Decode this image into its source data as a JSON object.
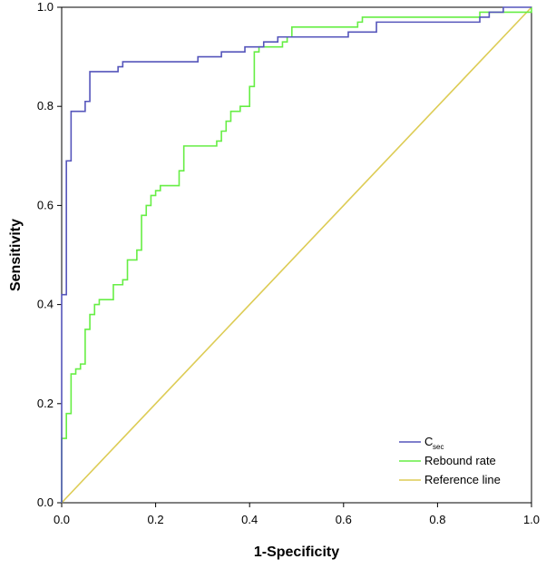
{
  "chart_data": {
    "type": "line",
    "title": "",
    "xlabel": "1-Specificity",
    "ylabel": "Sensitivity",
    "xlim": [
      0.0,
      1.0
    ],
    "ylim": [
      0.0,
      1.0
    ],
    "x_ticks": [
      "0.0",
      "0.2",
      "0.4",
      "0.6",
      "0.8",
      "1.0"
    ],
    "y_ticks": [
      "0.0",
      "0.2",
      "0.4",
      "0.6",
      "0.8",
      "1.0"
    ],
    "grid": false,
    "legend_position": "bottom-right",
    "series": [
      {
        "name": "Csec",
        "name_main": "C",
        "name_sub": "sec",
        "color": "#5555bb",
        "x": [
          0.0,
          0.0,
          0.01,
          0.01,
          0.02,
          0.02,
          0.04,
          0.04,
          0.05,
          0.05,
          0.06,
          0.06,
          0.11,
          0.11,
          0.12,
          0.12,
          0.13,
          0.13,
          0.29,
          0.29,
          0.32,
          0.32,
          0.34,
          0.34,
          0.35,
          0.35,
          0.39,
          0.39,
          0.43,
          0.43,
          0.46,
          0.46,
          0.61,
          0.61,
          0.67,
          0.67,
          0.87,
          0.87,
          0.89,
          0.89,
          0.91,
          0.91,
          0.93,
          0.93,
          0.94,
          0.94,
          0.97,
          1.0
        ],
        "y": [
          0.0,
          0.42,
          0.42,
          0.69,
          0.69,
          0.79,
          0.79,
          0.79,
          0.79,
          0.81,
          0.81,
          0.87,
          0.87,
          0.87,
          0.87,
          0.88,
          0.88,
          0.89,
          0.89,
          0.9,
          0.9,
          0.9,
          0.9,
          0.91,
          0.91,
          0.91,
          0.91,
          0.92,
          0.92,
          0.93,
          0.93,
          0.94,
          0.94,
          0.95,
          0.95,
          0.97,
          0.97,
          0.97,
          0.97,
          0.98,
          0.98,
          0.99,
          0.99,
          0.99,
          0.99,
          1.0,
          1.0,
          1.0
        ]
      },
      {
        "name": "Rebound rate",
        "color": "#66ee44",
        "x": [
          0.0,
          0.0,
          0.01,
          0.01,
          0.02,
          0.02,
          0.03,
          0.03,
          0.04,
          0.04,
          0.05,
          0.05,
          0.06,
          0.06,
          0.07,
          0.07,
          0.08,
          0.08,
          0.11,
          0.11,
          0.13,
          0.13,
          0.14,
          0.14,
          0.16,
          0.16,
          0.17,
          0.17,
          0.18,
          0.18,
          0.19,
          0.19,
          0.2,
          0.2,
          0.21,
          0.21,
          0.25,
          0.25,
          0.26,
          0.26,
          0.33,
          0.33,
          0.34,
          0.34,
          0.35,
          0.35,
          0.36,
          0.36,
          0.37,
          0.37,
          0.38,
          0.38,
          0.4,
          0.4,
          0.41,
          0.41,
          0.42,
          0.42,
          0.47,
          0.47,
          0.48,
          0.48,
          0.49,
          0.49,
          0.63,
          0.63,
          0.64,
          0.64,
          0.66,
          0.66,
          0.72,
          0.72,
          0.89,
          0.89,
          1.0,
          1.0
        ],
        "y": [
          0.0,
          0.13,
          0.13,
          0.18,
          0.18,
          0.26,
          0.26,
          0.27,
          0.27,
          0.28,
          0.28,
          0.35,
          0.35,
          0.38,
          0.38,
          0.4,
          0.4,
          0.41,
          0.41,
          0.44,
          0.44,
          0.45,
          0.45,
          0.49,
          0.49,
          0.51,
          0.51,
          0.58,
          0.58,
          0.6,
          0.6,
          0.62,
          0.62,
          0.63,
          0.63,
          0.64,
          0.64,
          0.67,
          0.67,
          0.72,
          0.72,
          0.73,
          0.73,
          0.75,
          0.75,
          0.77,
          0.77,
          0.79,
          0.79,
          0.79,
          0.79,
          0.8,
          0.8,
          0.84,
          0.84,
          0.91,
          0.91,
          0.92,
          0.92,
          0.93,
          0.93,
          0.94,
          0.94,
          0.96,
          0.96,
          0.97,
          0.97,
          0.98,
          0.98,
          0.98,
          0.98,
          0.98,
          0.98,
          0.99,
          0.99,
          1.0
        ]
      },
      {
        "name": "Reference line",
        "color": "#ddcc55",
        "x": [
          0.0,
          1.0
        ],
        "y": [
          0.0,
          1.0
        ]
      }
    ]
  }
}
